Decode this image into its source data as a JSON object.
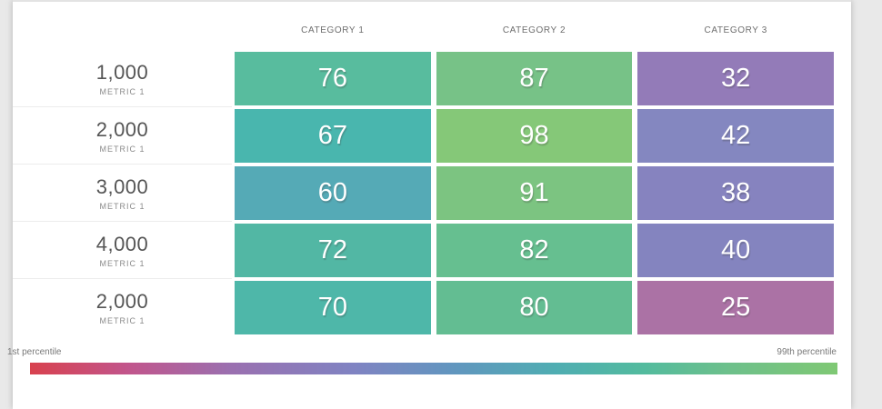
{
  "chart_data": {
    "type": "heatmap",
    "columns": [
      "CATEGORY 1",
      "CATEGORY 2",
      "CATEGORY 3"
    ],
    "rows": [
      {
        "label": "1,000",
        "sublabel": "METRIC 1",
        "cells": [
          {
            "value": "76",
            "color": "#58bc9e"
          },
          {
            "value": "87",
            "color": "#77c287"
          },
          {
            "value": "32",
            "color": "#937bb8"
          }
        ]
      },
      {
        "label": "2,000",
        "sublabel": "METRIC 1",
        "cells": [
          {
            "value": "67",
            "color": "#49b6ae"
          },
          {
            "value": "98",
            "color": "#85c878"
          },
          {
            "value": "42",
            "color": "#8487c0"
          }
        ]
      },
      {
        "label": "3,000",
        "sublabel": "METRIC 1",
        "cells": [
          {
            "value": "60",
            "color": "#55aab6"
          },
          {
            "value": "91",
            "color": "#7cc481"
          },
          {
            "value": "38",
            "color": "#8683bf"
          }
        ]
      },
      {
        "label": "4,000",
        "sublabel": "METRIC 1",
        "cells": [
          {
            "value": "72",
            "color": "#52b7a4"
          },
          {
            "value": "82",
            "color": "#66bf90"
          },
          {
            "value": "40",
            "color": "#8484bf"
          }
        ]
      },
      {
        "label": "2,000",
        "sublabel": "METRIC 1",
        "cells": [
          {
            "value": "70",
            "color": "#4eb7a9"
          },
          {
            "value": "80",
            "color": "#63bd92"
          },
          {
            "value": "25",
            "color": "#ab72a5"
          }
        ]
      }
    ],
    "value_range": [
      0,
      100
    ],
    "legend": {
      "left_label": "1st percentile",
      "right_label": "99th percentile",
      "gradient_stops": [
        [
          "0%",
          "#d8414e"
        ],
        [
          "12%",
          "#c2558b"
        ],
        [
          "25%",
          "#9a70b0"
        ],
        [
          "40%",
          "#8083c2"
        ],
        [
          "52%",
          "#6295bf"
        ],
        [
          "65%",
          "#4fadb2"
        ],
        [
          "76%",
          "#53bb9e"
        ],
        [
          "87%",
          "#6ec08a"
        ],
        [
          "100%",
          "#7fc874"
        ]
      ]
    }
  }
}
